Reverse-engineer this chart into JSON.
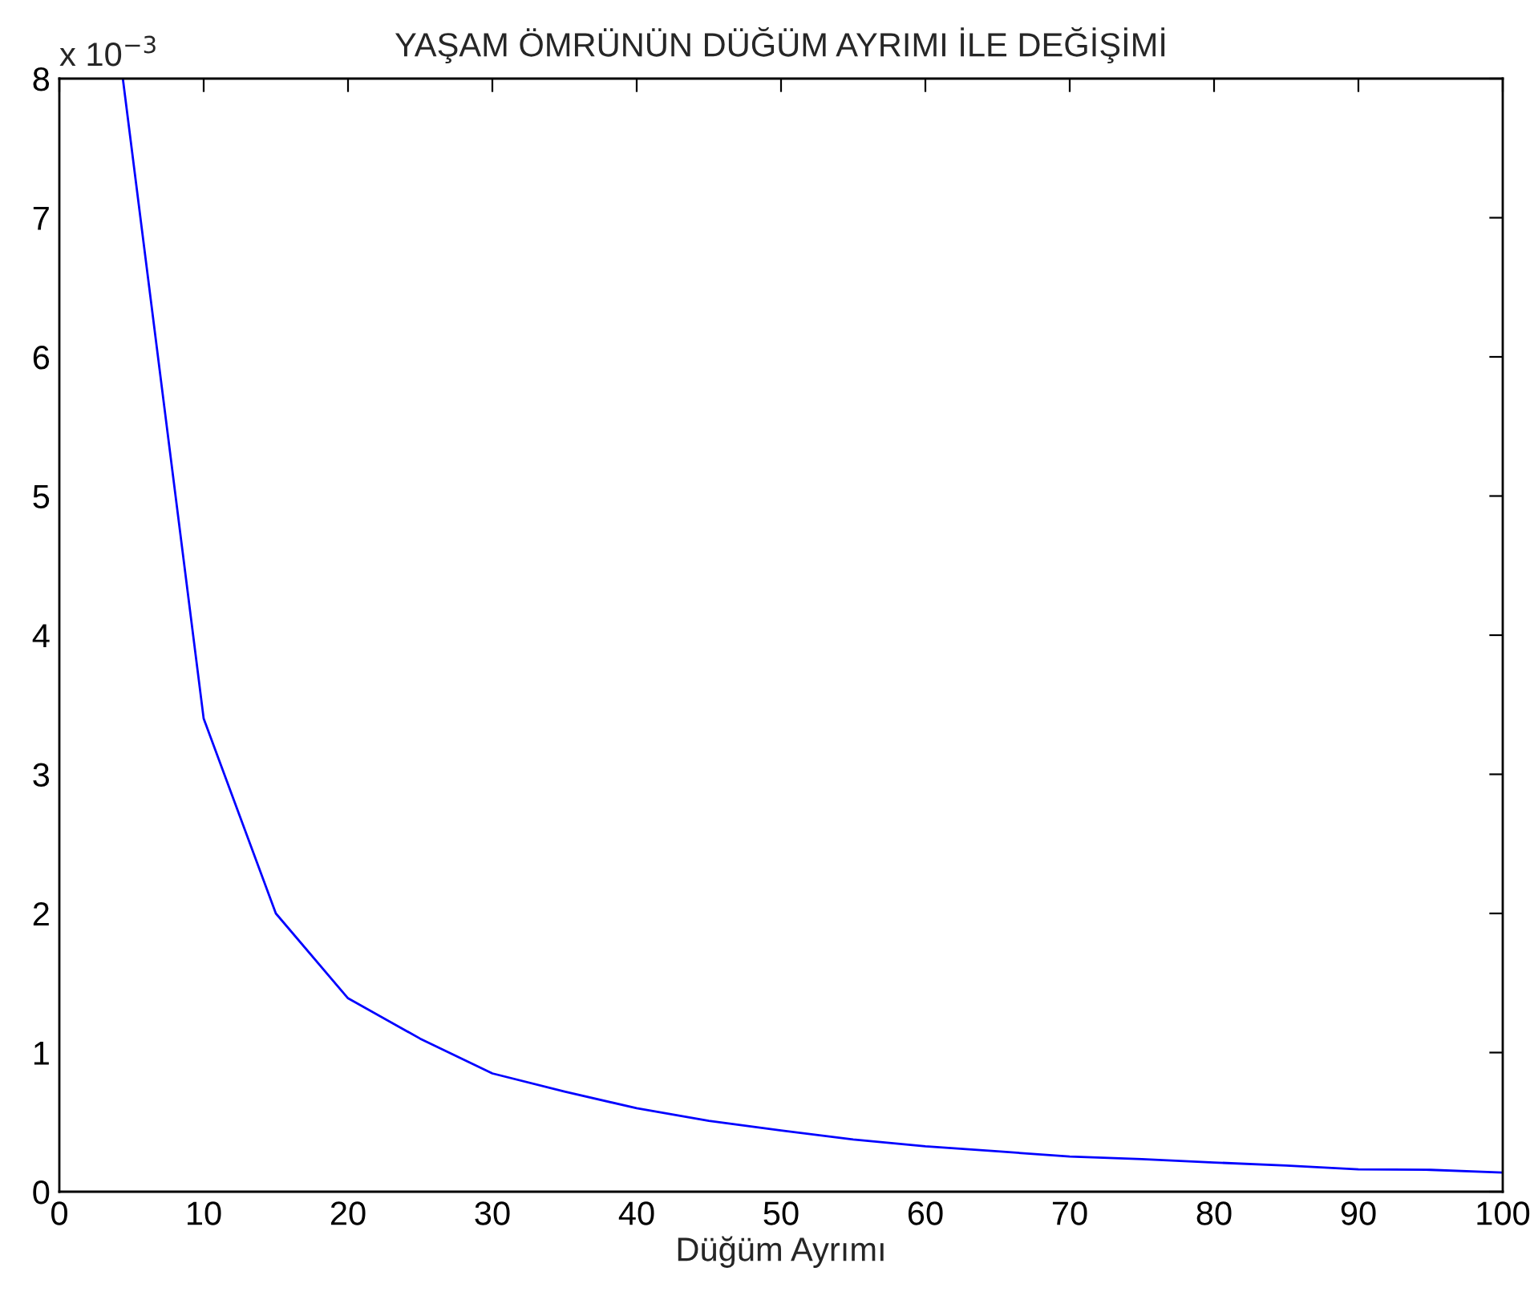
{
  "chart_data": {
    "type": "line",
    "title": "YAŞAM ÖMRÜNÜN DÜĞÜM AYRIMI İLE DEĞİŞİMİ",
    "xlabel": "Düğüm Ayrımı",
    "annotations": [
      "x 10$^{−3}$"
    ],
    "series": [
      {
        "color": "#0000ff",
        "x": [
          4.4,
          10,
          15,
          20,
          25,
          30,
          35,
          40,
          45,
          50,
          55,
          60,
          65,
          70,
          75,
          80,
          85,
          90,
          95,
          100
        ],
        "values": [
          8,
          3.4,
          2.0,
          1.39,
          1.1,
          0.85,
          0.72,
          0.6,
          0.51,
          0.44,
          0.375,
          0.326,
          0.29,
          0.253,
          0.234,
          0.21,
          0.188,
          0.161,
          0.157,
          0.138
        ]
      }
    ],
    "xlim": [
      0,
      100
    ],
    "xticks": [
      0,
      10,
      20,
      30,
      40,
      50,
      60,
      70,
      80,
      90,
      100
    ],
    "ylim": [
      0,
      8
    ],
    "yticks": [
      0,
      1,
      2,
      3,
      4,
      5,
      6,
      7,
      8
    ],
    "grid": false,
    "legend": false,
    "marker": "none",
    "line_style": "solid"
  }
}
